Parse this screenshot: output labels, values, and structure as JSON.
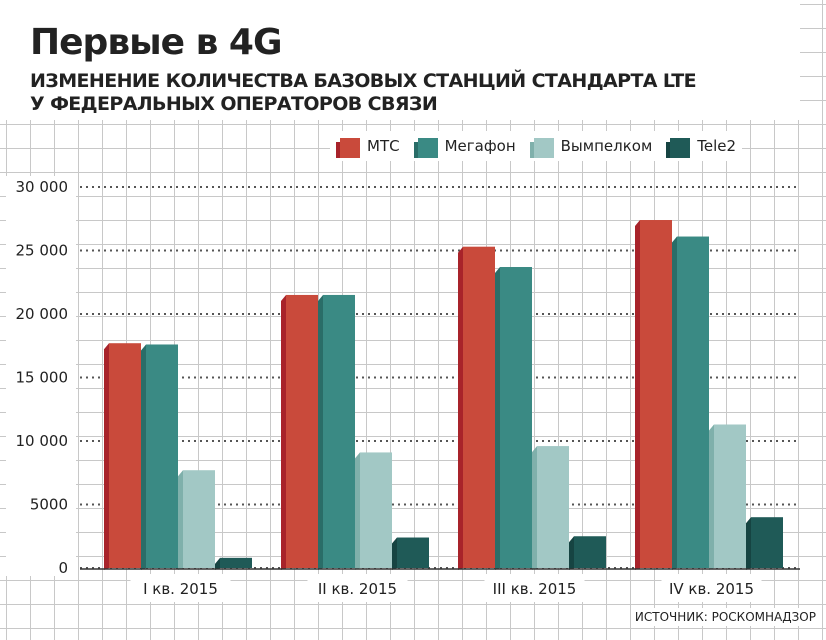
{
  "title": "Первые в 4G",
  "subtitle_line1": "ИЗМЕНЕНИЕ КОЛИЧЕСТВА БАЗОВЫХ СТАНЦИЙ СТАНДАРТА LTE",
  "subtitle_line2": "У ФЕДЕРАЛЬНЫХ ОПЕРАТОРОВ СВЯЗИ",
  "source": "ИСТОЧНИК: РОСКОМНАДЗОР",
  "chart_data": {
    "type": "bar",
    "categories": [
      "I кв. 2015",
      "II кв. 2015",
      "III кв. 2015",
      "IV кв. 2015"
    ],
    "series": [
      {
        "name": "МТС",
        "values": [
          17700,
          21500,
          25300,
          27400
        ],
        "color": "#c94a3b",
        "side_color": "#a8232a"
      },
      {
        "name": "Мегафон",
        "values": [
          17600,
          21500,
          23700,
          26100
        ],
        "color": "#3a8a84",
        "side_color": "#2a6d68"
      },
      {
        "name": "Вымпелком",
        "values": [
          7700,
          9100,
          9600,
          11300
        ],
        "color": "#a2c8c5",
        "side_color": "#7fb0ab"
      },
      {
        "name": "Tele2",
        "values": [
          800,
          2400,
          2500,
          4000
        ],
        "color": "#1f5a57",
        "side_color": "#164442"
      }
    ],
    "ylim": [
      0,
      30000
    ],
    "yticks": [
      0,
      5000,
      10000,
      15000,
      20000,
      25000,
      30000
    ],
    "ytick_labels": [
      "0",
      "5000",
      "10 000",
      "15 000",
      "20 000",
      "25 000",
      "30 000"
    ],
    "xlabel": "",
    "ylabel": "",
    "grid": true,
    "legend_position": "top"
  }
}
